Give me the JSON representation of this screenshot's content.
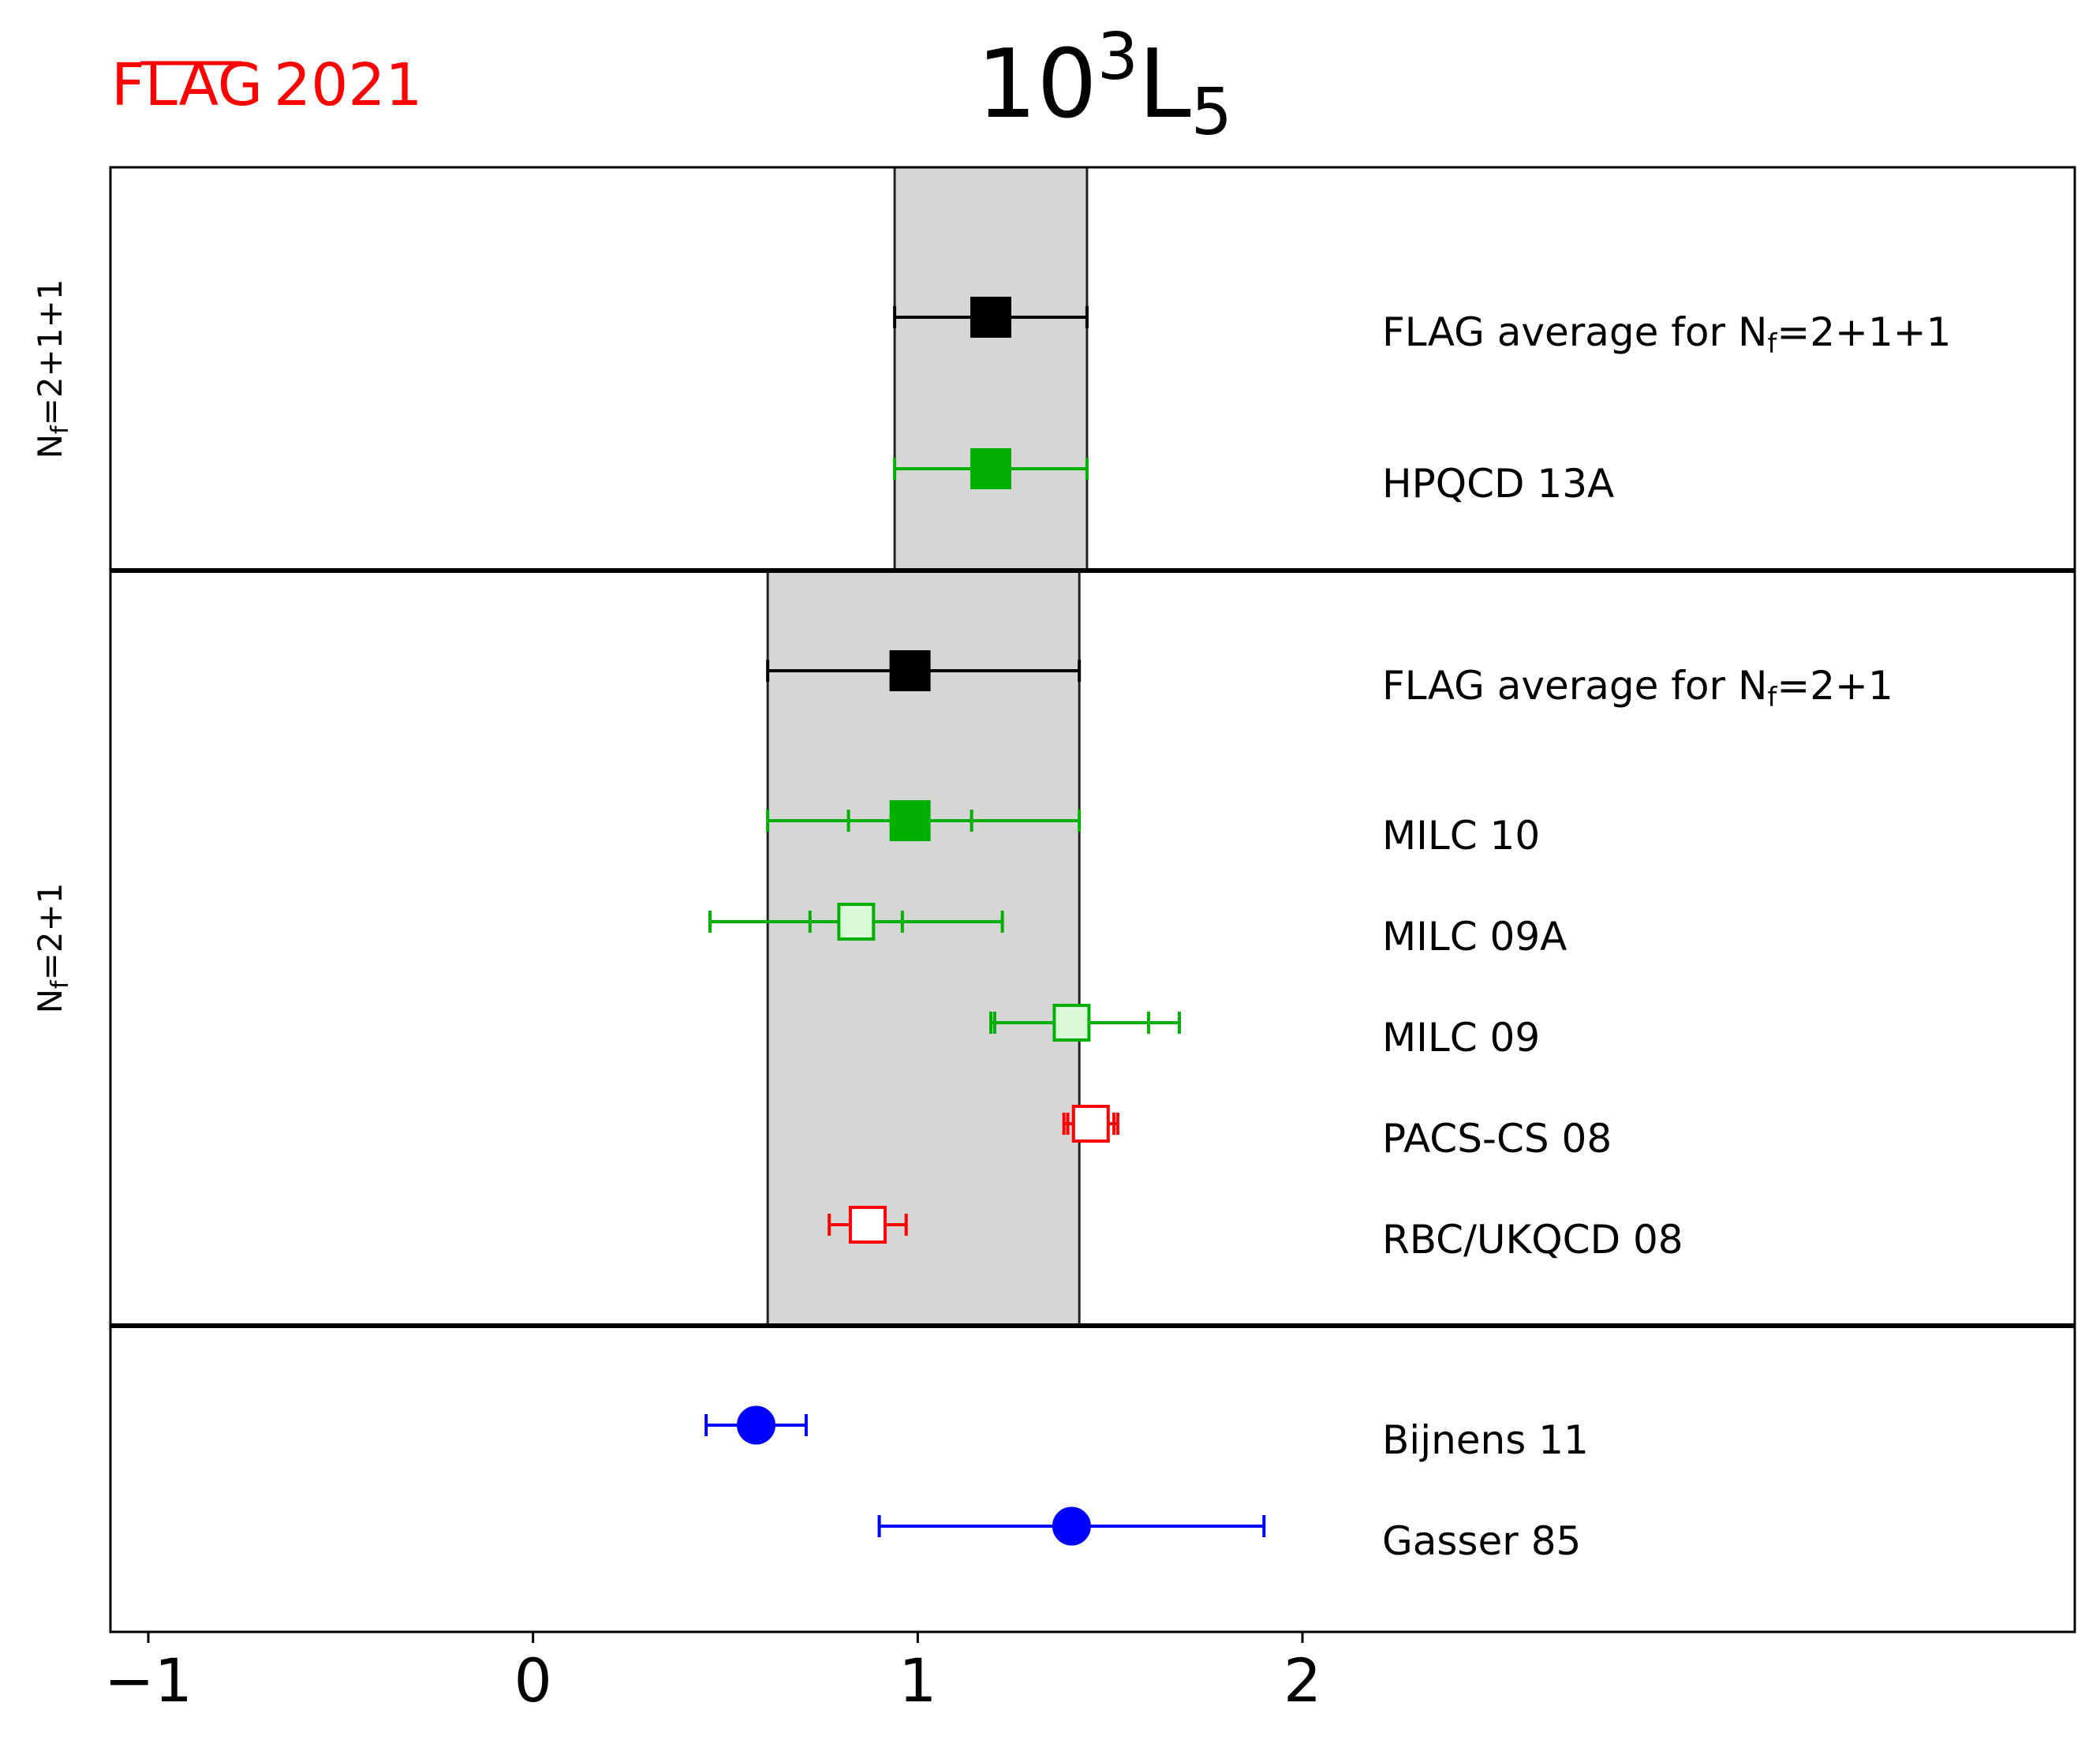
{
  "brand": {
    "flag": "FLAG",
    "year": "2021",
    "color": "#ff0000"
  },
  "chart_data": {
    "type": "scatter",
    "title": {
      "base": "10",
      "sup": "3",
      "letter": "L",
      "sub": "5"
    },
    "xlim": [
      -1.1,
      4.0
    ],
    "x_ticks": [
      {
        "value": -1,
        "label": "−1"
      },
      {
        "value": 0,
        "label": "0"
      },
      {
        "value": 1,
        "label": "1"
      },
      {
        "value": 2,
        "label": "2"
      }
    ],
    "grid": false,
    "panels": [
      {
        "nf_label": "N",
        "nf_sub": "f",
        "nf_value": "=2+1+1",
        "band": [
          0.94,
          1.44
        ],
        "rows": [
          {
            "label": "FLAG average for N",
            "label_sub": "f",
            "label_tail": "=2+1+1",
            "value": 1.19,
            "err_stat": null,
            "err_total": [
              0.94,
              1.44
            ],
            "marker": "square",
            "fill": "solid",
            "color": "#000000"
          },
          {
            "label": "HPQCD 13A",
            "value": 1.19,
            "err_stat": null,
            "err_total": [
              0.94,
              1.44
            ],
            "marker": "square",
            "fill": "solid",
            "color": "#00b000"
          }
        ]
      },
      {
        "nf_label": "N",
        "nf_sub": "f",
        "nf_value": "=2+1",
        "band": [
          0.61,
          1.42
        ],
        "rows": [
          {
            "label": "FLAG average for N",
            "label_sub": "f",
            "label_tail": "=2+1",
            "value": 0.98,
            "err_stat": null,
            "err_total": [
              0.61,
              1.42
            ],
            "marker": "square",
            "fill": "solid",
            "color": "#000000"
          },
          {
            "label": "MILC 10",
            "value": 0.98,
            "err_stat": [
              0.82,
              1.14
            ],
            "err_total": [
              0.61,
              1.42
            ],
            "marker": "square",
            "fill": "solid",
            "color": "#00b000"
          },
          {
            "label": "MILC 09A",
            "value": 0.84,
            "err_stat": [
              0.72,
              0.96
            ],
            "err_total": [
              0.46,
              1.22
            ],
            "marker": "square",
            "fill": "light",
            "color": "#00b000"
          },
          {
            "label": "MILC 09",
            "value": 1.4,
            "err_stat": [
              1.2,
              1.6
            ],
            "err_total": [
              1.19,
              1.68
            ],
            "marker": "square",
            "fill": "light",
            "color": "#00b000"
          },
          {
            "label": "PACS-CS 08",
            "value": 1.45,
            "err_stat": [
              1.39,
              1.51
            ],
            "err_total": [
              1.38,
              1.52
            ],
            "marker": "square",
            "fill": "open",
            "color": "#ff0000"
          },
          {
            "label": "RBC/UKQCD 08",
            "value": 0.87,
            "err_stat": null,
            "err_total": [
              0.77,
              0.97
            ],
            "marker": "square",
            "fill": "open",
            "color": "#ff0000"
          }
        ]
      },
      {
        "nf_label": "",
        "band": null,
        "rows": [
          {
            "label": "Bijnens 11",
            "value": 0.58,
            "err_stat": null,
            "err_total": [
              0.45,
              0.71
            ],
            "marker": "circle",
            "fill": "solid",
            "color": "#0000ff"
          },
          {
            "label": "Gasser 85",
            "value": 1.4,
            "err_stat": null,
            "err_total": [
              0.9,
              1.9
            ],
            "marker": "circle",
            "fill": "solid",
            "color": "#0000ff"
          }
        ]
      }
    ]
  }
}
